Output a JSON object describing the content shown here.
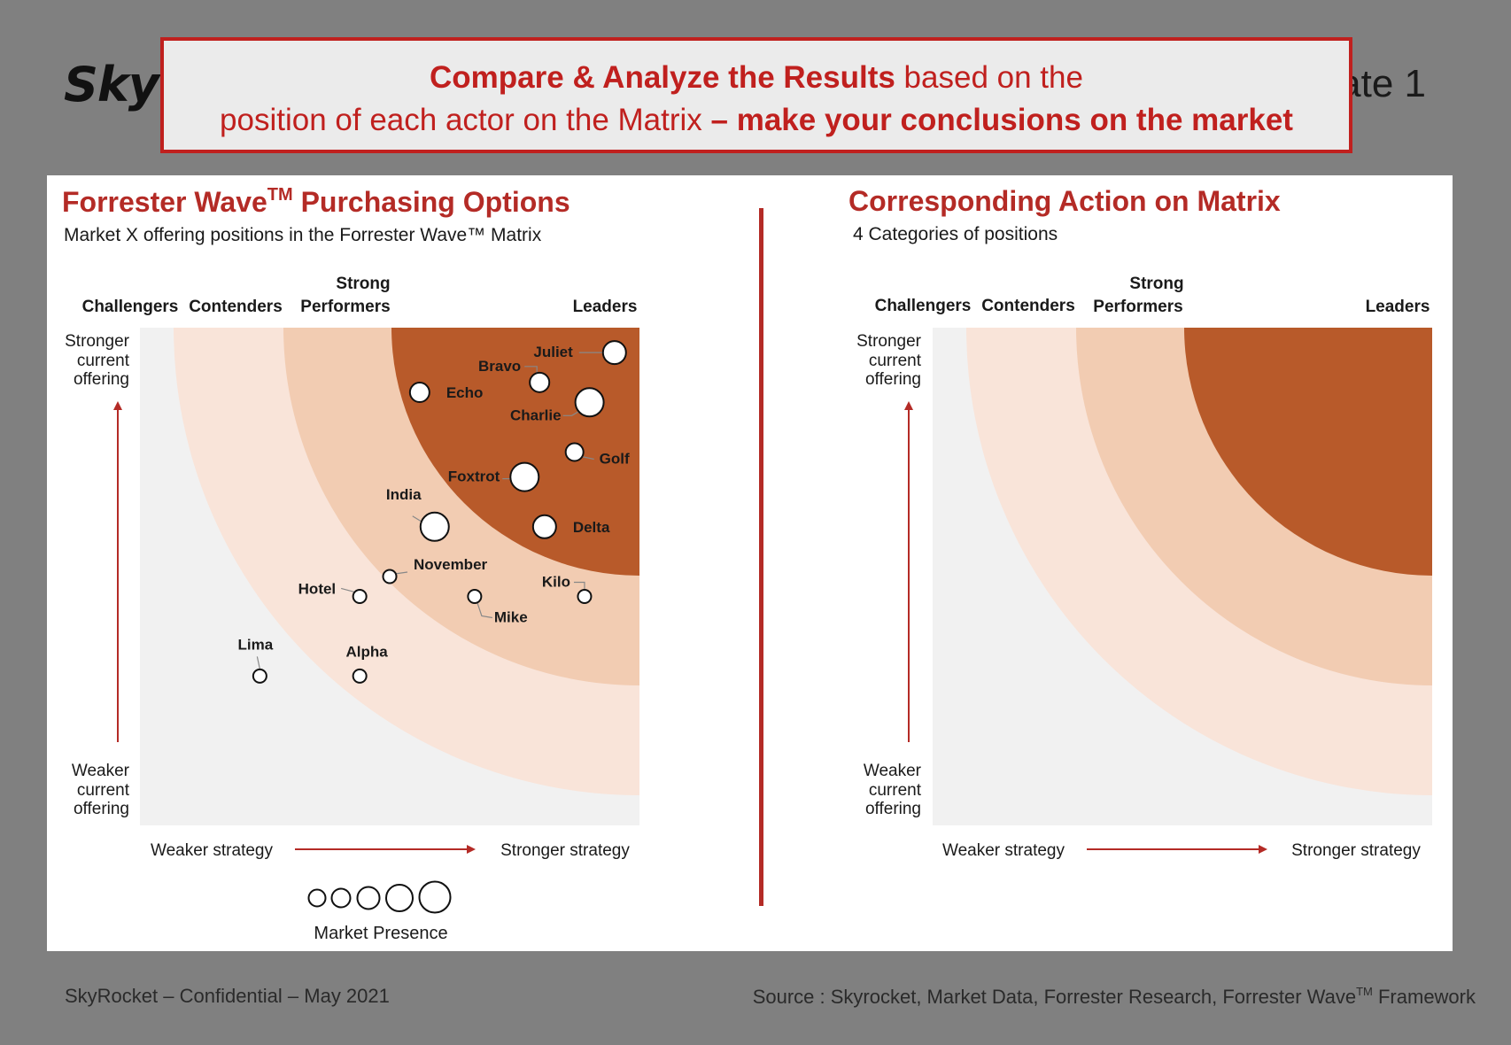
{
  "header": {
    "logo_text": "Sky",
    "template_text": "ate 1",
    "banner_line1_bold": "Compare & Analyze the Results",
    "banner_line1_rest": " based on the",
    "banner_line2_normal": "position of each actor on the Matrix ",
    "banner_line2_bold": "– make your conclusions on the market"
  },
  "left": {
    "title_main": "Forrester Wave",
    "title_tm": "TM",
    "title_rest": " Purchasing Options",
    "subtitle": "Market X offering positions in the Forrester Wave™ Matrix"
  },
  "right": {
    "title": "Corresponding Action on Matrix",
    "subtitle": "4 Categories of positions"
  },
  "chart_data": {
    "type": "scatter",
    "categories": [
      "Challengers",
      "Contenders",
      "Strong Performers",
      "Leaders"
    ],
    "category_labels": {
      "challengers": "Challengers",
      "contenders": "Contenders",
      "strong_top": "Strong",
      "strong_bottom": "Performers",
      "leaders": "Leaders"
    },
    "y_axis_top": [
      "Stronger",
      "current",
      "offering"
    ],
    "y_axis_bottom": [
      "Weaker",
      "current",
      "offering"
    ],
    "x_axis_left": "Weaker strategy",
    "x_axis_right": "Stronger strategy",
    "legend_title": "Market Presence",
    "colors": {
      "leaders": "#b85a2a",
      "strong_performers": "#f2ccb2",
      "contenders": "#f9e4d9",
      "challengers": "#f1f1f1",
      "arrow": "#b42b26"
    },
    "vendors": [
      {
        "name": "Juliet",
        "strategy": 95,
        "offering": 95,
        "presence": 4
      },
      {
        "name": "Bravo",
        "strategy": 80,
        "offering": 89,
        "presence": 3
      },
      {
        "name": "Echo",
        "strategy": 56,
        "offering": 87,
        "presence": 3
      },
      {
        "name": "Charlie",
        "strategy": 90,
        "offering": 85,
        "presence": 5
      },
      {
        "name": "Golf",
        "strategy": 87,
        "offering": 75,
        "presence": 2
      },
      {
        "name": "Foxtrot",
        "strategy": 77,
        "offering": 70,
        "presence": 5
      },
      {
        "name": "India",
        "strategy": 59,
        "offering": 60,
        "presence": 5
      },
      {
        "name": "Delta",
        "strategy": 81,
        "offering": 60,
        "presence": 4
      },
      {
        "name": "November",
        "strategy": 50,
        "offering": 50,
        "presence": 1
      },
      {
        "name": "Hotel",
        "strategy": 44,
        "offering": 46,
        "presence": 1
      },
      {
        "name": "Mike",
        "strategy": 67,
        "offering": 46,
        "presence": 1
      },
      {
        "name": "Kilo",
        "strategy": 89,
        "offering": 46,
        "presence": 1
      },
      {
        "name": "Lima",
        "strategy": 24,
        "offering": 30,
        "presence": 1
      },
      {
        "name": "Alpha",
        "strategy": 44,
        "offering": 30,
        "presence": 1
      }
    ]
  },
  "footer": {
    "left": "SkyRocket – Confidential – May 2021",
    "right_main": "Source : Skyrocket, Market Data, Forrester Research, Forrester Wave",
    "right_tm": "TM",
    "right_rest": " Framework"
  }
}
